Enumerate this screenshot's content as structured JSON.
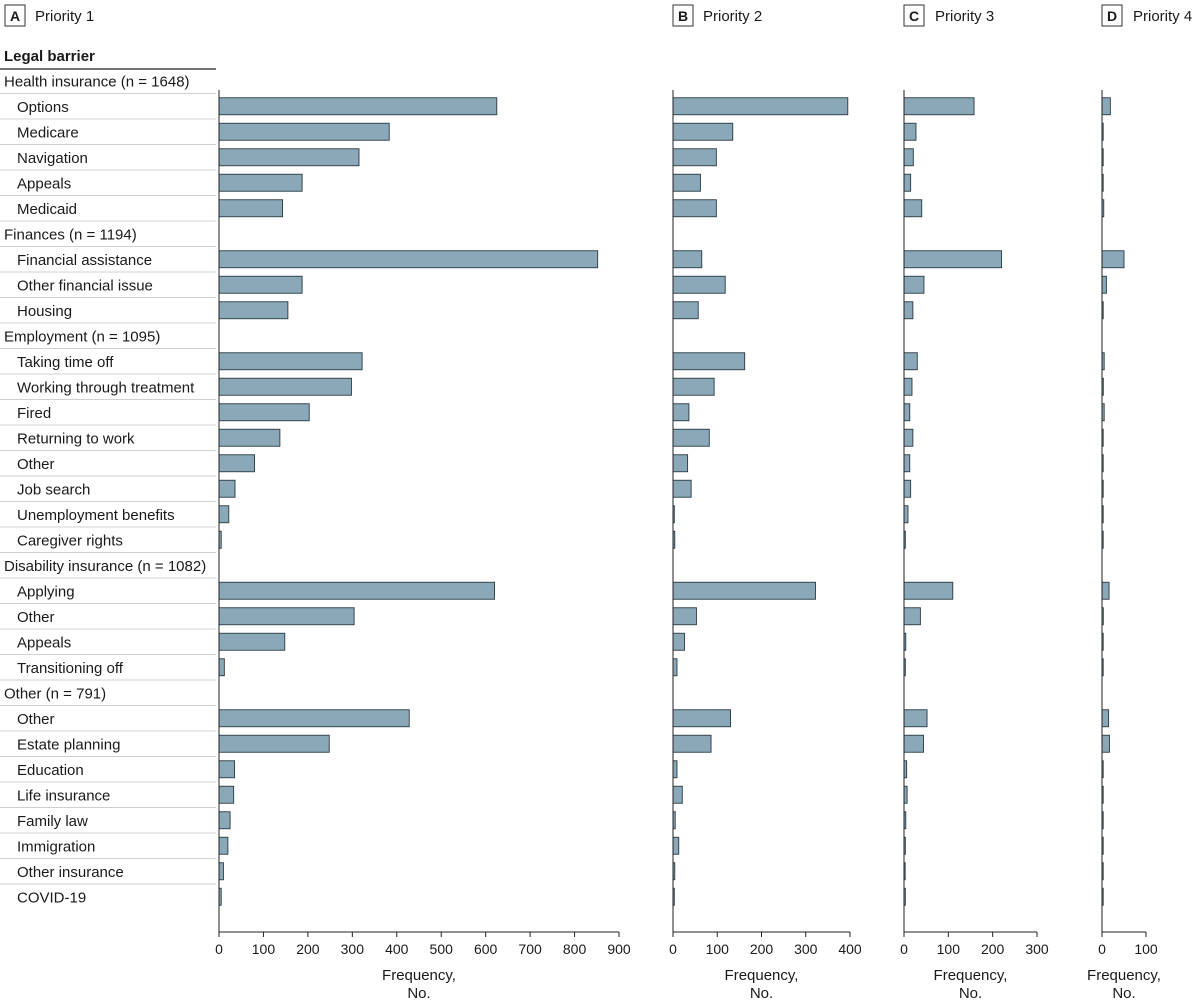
{
  "header_label": "Legal barrier",
  "groups": [
    {
      "label": "Health insurance (n = 1648)",
      "items": [
        "Options",
        "Medicare",
        "Navigation",
        "Appeals",
        "Medicaid"
      ]
    },
    {
      "label": "Finances (n = 1194)",
      "items": [
        "Financial assistance",
        "Other financial issue",
        "Housing"
      ]
    },
    {
      "label": "Employment (n = 1095)",
      "items": [
        "Taking time off",
        "Working through treatment",
        "Fired",
        "Returning to work",
        "Other",
        "Job search",
        "Unemployment benefits",
        "Caregiver rights"
      ]
    },
    {
      "label": "Disability insurance (n = 1082)",
      "items": [
        "Applying",
        "Other",
        "Appeals",
        "Transitioning off"
      ]
    },
    {
      "label": "Other (n = 791)",
      "items": [
        "Other",
        "Estate planning",
        "Education",
        "Life insurance",
        "Family law",
        "Immigration",
        "Other insurance",
        "COVID-19"
      ]
    }
  ],
  "colors": {
    "bar_fill": "#8aa8b8",
    "bar_stroke": "#2a3a44",
    "axis": "#222222",
    "separator": "#d0d0d0"
  },
  "chart_data": [
    {
      "type": "bar",
      "orientation": "horizontal",
      "panel_letter": "A",
      "title": "Priority 1",
      "xlabel": "Frequency,\nNo.",
      "xlabel_lines": [
        "Frequency,",
        "No."
      ],
      "xlim": [
        0,
        900
      ],
      "ticks": [
        0,
        100,
        200,
        300,
        400,
        500,
        600,
        700,
        800,
        900
      ],
      "values": [
        625,
        383,
        315,
        187,
        143,
        852,
        187,
        155,
        322,
        298,
        203,
        137,
        80,
        36,
        22,
        5,
        620,
        304,
        148,
        12,
        428,
        248,
        35,
        33,
        25,
        20,
        10,
        5
      ]
    },
    {
      "type": "bar",
      "orientation": "horizontal",
      "panel_letter": "B",
      "title": "Priority 2",
      "xlabel": "Frequency,\nNo.",
      "xlabel_lines": [
        "Frequency,",
        "No."
      ],
      "xlim": [
        0,
        400
      ],
      "ticks": [
        0,
        100,
        200,
        300,
        400
      ],
      "values": [
        395,
        135,
        98,
        62,
        98,
        65,
        118,
        57,
        162,
        93,
        36,
        82,
        33,
        41,
        3,
        4,
        322,
        53,
        26,
        9,
        130,
        86,
        9,
        21,
        5,
        13,
        4,
        3
      ]
    },
    {
      "type": "bar",
      "orientation": "horizontal",
      "panel_letter": "C",
      "title": "Priority 3",
      "xlabel": "Frequency,\nNo.",
      "xlabel_lines": [
        "Frequency,",
        "No."
      ],
      "xlim": [
        0,
        300
      ],
      "ticks": [
        0,
        100,
        200,
        300
      ],
      "values": [
        158,
        27,
        21,
        15,
        40,
        220,
        45,
        20,
        30,
        18,
        13,
        20,
        13,
        15,
        9,
        3,
        110,
        37,
        4,
        3,
        52,
        44,
        6,
        7,
        4,
        3,
        2,
        3
      ]
    },
    {
      "type": "bar",
      "orientation": "horizontal",
      "panel_letter": "D",
      "title": "Priority 4",
      "xlabel": "Frequency,\nNo.",
      "xlabel_lines": [
        "Frequency,",
        "No."
      ],
      "xlim": [
        0,
        100
      ],
      "ticks": [
        0,
        100
      ],
      "values": [
        19,
        2,
        2,
        2,
        4,
        50,
        10,
        2,
        5,
        3,
        5,
        2,
        1,
        1,
        1,
        1,
        16,
        3,
        0,
        0,
        15,
        17,
        1,
        1,
        1,
        1,
        1,
        0
      ]
    }
  ]
}
